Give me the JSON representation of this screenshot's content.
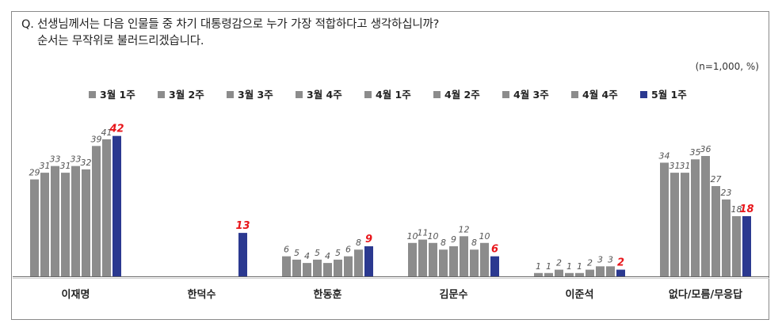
{
  "question": {
    "line1": "Q. 선생님께서는 다음 인물들 중 차기 대통령감으로 누가 가장 적합하다고 생각하십니까?",
    "line2": "순서는 무작위로 불러드리겠습니다."
  },
  "note": "(n=1,000,  %)",
  "chart_data": {
    "type": "bar",
    "categories": [
      "이재명",
      "한덕수",
      "한동훈",
      "김문수",
      "이준석",
      "없다/모름/무응답"
    ],
    "series": [
      {
        "name": "3월 1주",
        "color": "#8c8c8c",
        "values": [
          29,
          null,
          6,
          10,
          1,
          34
        ]
      },
      {
        "name": "3월 2주",
        "color": "#8c8c8c",
        "values": [
          31,
          null,
          5,
          11,
          1,
          31
        ]
      },
      {
        "name": "3월 3주",
        "color": "#8c8c8c",
        "values": [
          33,
          null,
          4,
          10,
          2,
          31
        ]
      },
      {
        "name": "3월 4주",
        "color": "#8c8c8c",
        "values": [
          31,
          null,
          5,
          8,
          1,
          35
        ]
      },
      {
        "name": "4월 1주",
        "color": "#8c8c8c",
        "values": [
          33,
          null,
          4,
          9,
          1,
          36
        ]
      },
      {
        "name": "4월 2주",
        "color": "#8c8c8c",
        "values": [
          32,
          null,
          5,
          12,
          2,
          27
        ]
      },
      {
        "name": "4월 3주",
        "color": "#8c8c8c",
        "values": [
          39,
          null,
          6,
          8,
          3,
          23
        ]
      },
      {
        "name": "4월 4주",
        "color": "#8c8c8c",
        "values": [
          41,
          null,
          8,
          10,
          3,
          18
        ]
      },
      {
        "name": "5월 1주",
        "color": "#2b3990",
        "values": [
          42,
          13,
          9,
          6,
          2,
          18
        ]
      }
    ],
    "highlight_color": "#e8161b",
    "legend_position": "top",
    "grid": false,
    "ylim": [
      0,
      45
    ]
  }
}
